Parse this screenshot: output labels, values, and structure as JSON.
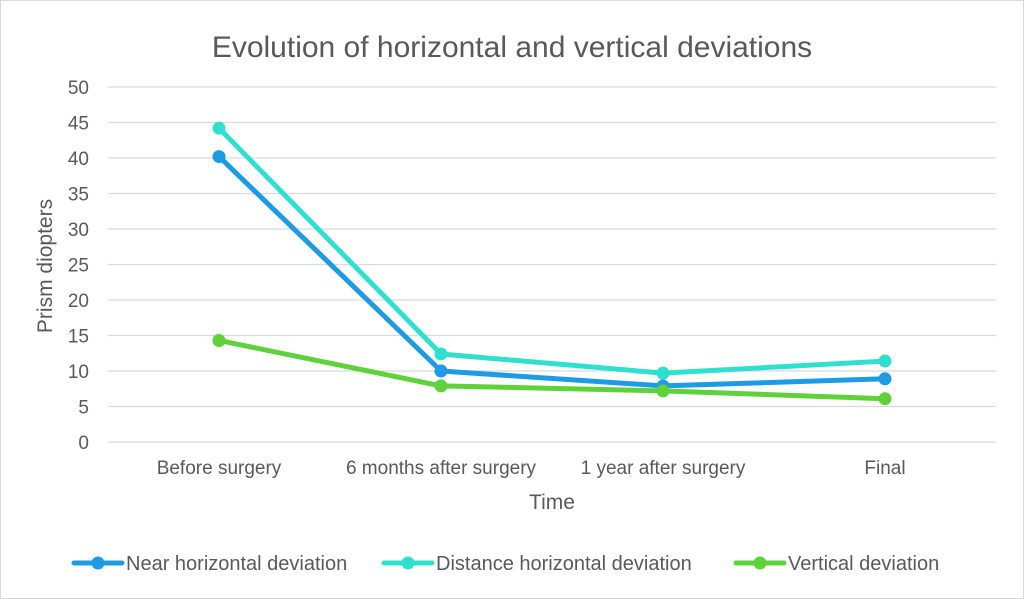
{
  "chart_data": {
    "type": "line",
    "title": "Evolution of horizontal and vertical deviations",
    "xlabel": "Time",
    "ylabel": "Prism diopters",
    "categories": [
      "Before surgery",
      "6 months after surgery",
      "1 year after surgery",
      "Final"
    ],
    "ylim": [
      0,
      50
    ],
    "yticks": [
      0,
      5,
      10,
      15,
      20,
      25,
      30,
      35,
      40,
      45,
      50
    ],
    "grid": true,
    "legend_position": "bottom",
    "series": [
      {
        "name": "Near horizontal deviation",
        "color": "#1f9be6",
        "values": [
          40.2,
          10.0,
          7.9,
          8.9
        ]
      },
      {
        "name": "Distance horizontal deviation",
        "color": "#2fe0d0",
        "values": [
          44.2,
          12.4,
          9.7,
          11.4
        ]
      },
      {
        "name": "Vertical deviation",
        "color": "#5fd13a",
        "values": [
          14.3,
          7.9,
          7.2,
          6.1
        ]
      }
    ]
  }
}
